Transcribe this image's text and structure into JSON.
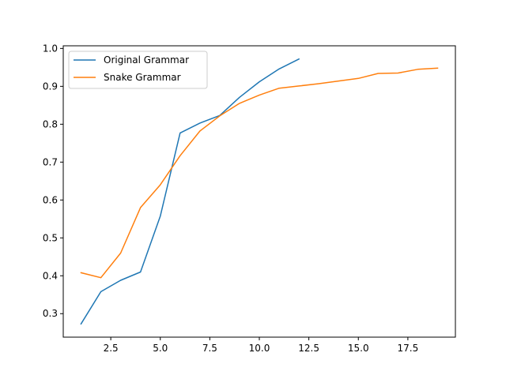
{
  "chart_data": {
    "type": "line",
    "title": "",
    "xlabel": "",
    "ylabel": "",
    "xlim": [
      0.1,
      19.9
    ],
    "ylim": [
      0.238,
      1.007
    ],
    "xticks": [
      2.5,
      5.0,
      7.5,
      10.0,
      12.5,
      15.0,
      17.5
    ],
    "xtick_labels": [
      "2.5",
      "5.0",
      "7.5",
      "10.0",
      "12.5",
      "15.0",
      "17.5"
    ],
    "yticks": [
      0.3,
      0.4,
      0.5,
      0.6,
      0.7,
      0.8,
      0.9,
      1.0
    ],
    "ytick_labels": [
      "0.3",
      "0.4",
      "0.5",
      "0.6",
      "0.7",
      "0.8",
      "0.9",
      "1.0"
    ],
    "grid": false,
    "legend_position": "top-left",
    "series": [
      {
        "name": "Original Grammar",
        "color": "#1f77b4",
        "x": [
          1,
          2,
          3,
          4,
          5,
          6,
          7,
          8,
          9,
          10,
          11,
          12
        ],
        "y": [
          0.273,
          0.358,
          0.388,
          0.41,
          0.557,
          0.777,
          0.803,
          0.823,
          0.871,
          0.912,
          0.946,
          0.972
        ]
      },
      {
        "name": "Snake Grammar",
        "color": "#ff7f0e",
        "x": [
          1,
          2,
          3,
          4,
          5,
          6,
          7,
          8,
          9,
          10,
          11,
          12,
          13,
          14,
          15,
          16,
          17,
          18,
          19
        ],
        "y": [
          0.408,
          0.395,
          0.46,
          0.58,
          0.64,
          0.717,
          0.782,
          0.822,
          0.855,
          0.877,
          0.895,
          0.901,
          0.907,
          0.914,
          0.921,
          0.934,
          0.935,
          0.945,
          0.948
        ]
      }
    ]
  }
}
